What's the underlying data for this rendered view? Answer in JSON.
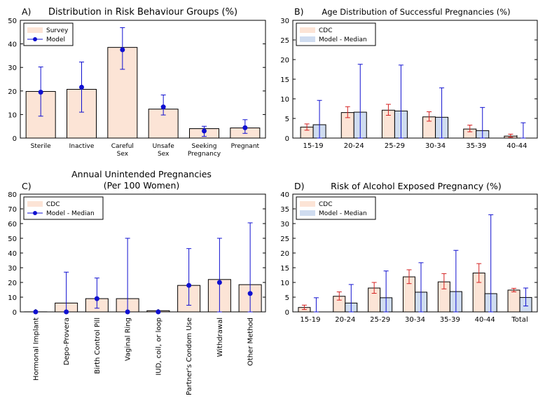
{
  "colors": {
    "survey_fill": "#fce4d6",
    "model_fill": "#cfdcf0",
    "bar_edge": "#000000",
    "model_marker": "#1010d0",
    "cdc_error": "#d42020"
  },
  "chart_data": [
    {
      "id": "A",
      "panel_letter": "A)",
      "type": "bar",
      "title": "Distribution in Risk Behaviour Groups (%)",
      "categories": [
        "Sterile",
        "Inactive",
        "Careful\nSex",
        "Unsafe\nSex",
        "Seeking\nPregnancy",
        "Pregnant"
      ],
      "ylim": [
        0,
        50
      ],
      "yticks": [
        0,
        10,
        20,
        30,
        40,
        50
      ],
      "legend_position": "top-left",
      "series": [
        {
          "name": "Survey",
          "kind": "bar",
          "values": [
            19.8,
            20.7,
            38.5,
            12.3,
            4.0,
            4.3
          ]
        },
        {
          "name": "Model",
          "kind": "point",
          "values": [
            19.5,
            21.6,
            37.5,
            13.2,
            3.0,
            4.4
          ],
          "err_low": [
            9.3,
            11.0,
            29.2,
            9.8,
            0.7,
            2.0
          ],
          "err_high": [
            30.2,
            32.3,
            46.9,
            18.3,
            5.0,
            7.8
          ]
        }
      ]
    },
    {
      "id": "B",
      "panel_letter": "B)",
      "type": "bar",
      "title": "Age Distribution of Successful Pregnancies (%)",
      "categories": [
        "15-19",
        "20-24",
        "25-29",
        "30-34",
        "35-39",
        "40-44"
      ],
      "ylim": [
        0,
        30
      ],
      "yticks": [
        0,
        5,
        10,
        15,
        20,
        25,
        30
      ],
      "legend_position": "top-left",
      "series": [
        {
          "name": "CDC",
          "values": [
            2.8,
            6.5,
            7.1,
            5.4,
            2.3,
            0.5
          ],
          "err_low": [
            2.0,
            5.2,
            5.8,
            4.3,
            1.6,
            0.2
          ],
          "err_high": [
            3.6,
            8.0,
            8.6,
            6.7,
            3.3,
            1.0
          ]
        },
        {
          "name": "Model - Median",
          "values": [
            3.4,
            6.6,
            6.9,
            5.3,
            1.9,
            0.0
          ],
          "err_low": [
            0.0,
            0.0,
            0.0,
            0.0,
            0.0,
            0.0
          ],
          "err_high": [
            9.6,
            18.8,
            18.6,
            12.8,
            7.8,
            3.9
          ]
        }
      ]
    },
    {
      "id": "C",
      "panel_letter": "C)",
      "type": "bar",
      "title": "Annual Unintended Pregnancies\n(Per 100 Women)",
      "categories": [
        "Hormonal Implant",
        "Depo-Provera",
        "Birth Control Pill",
        "Vaginal Ring",
        "IUD, coil, or loop",
        "Partner's Condom Use",
        "Withdrawal",
        "Other Method"
      ],
      "ylim": [
        0,
        80
      ],
      "yticks": [
        0,
        10,
        20,
        30,
        40,
        50,
        60,
        70,
        80
      ],
      "legend_position": "top-left",
      "series": [
        {
          "name": "CDC",
          "kind": "bar",
          "values": [
            0.05,
            6,
            9,
            9,
            0.8,
            18,
            22,
            18.5
          ]
        },
        {
          "name": "Model - Median",
          "kind": "point",
          "values": [
            0,
            0,
            9,
            0,
            0,
            18,
            20,
            12.5
          ],
          "err_low": [
            0,
            0,
            2.5,
            0,
            0,
            4.5,
            0,
            0
          ],
          "err_high": [
            0,
            27,
            23,
            50,
            0,
            43,
            50,
            60.5
          ]
        }
      ]
    },
    {
      "id": "D",
      "panel_letter": "D)",
      "type": "bar",
      "title": "Risk of Alcohol Exposed Pregnancy (%)",
      "categories": [
        "15-19",
        "20-24",
        "25-29",
        "30-34",
        "35-39",
        "40-44",
        "Total"
      ],
      "ylim": [
        0,
        40
      ],
      "yticks": [
        0,
        5,
        10,
        15,
        20,
        25,
        30,
        35,
        40
      ],
      "legend_position": "top-left",
      "series": [
        {
          "name": "CDC",
          "values": [
            1.5,
            5.3,
            8.1,
            11.9,
            10.2,
            13.2,
            7.4
          ],
          "err_low": [
            0.8,
            4.0,
            6.3,
            9.6,
            7.8,
            10.0,
            6.8
          ],
          "err_high": [
            2.3,
            6.8,
            10.0,
            14.3,
            13.0,
            16.4,
            8.0
          ]
        },
        {
          "name": "Model - Median",
          "values": [
            0.0,
            3.0,
            4.8,
            6.7,
            6.9,
            6.2,
            4.9
          ],
          "err_low": [
            0.0,
            0.0,
            0.0,
            0.0,
            0.0,
            0.0,
            2.0
          ],
          "err_high": [
            4.8,
            9.3,
            13.9,
            16.7,
            20.9,
            33.0,
            8.1
          ]
        }
      ]
    }
  ]
}
